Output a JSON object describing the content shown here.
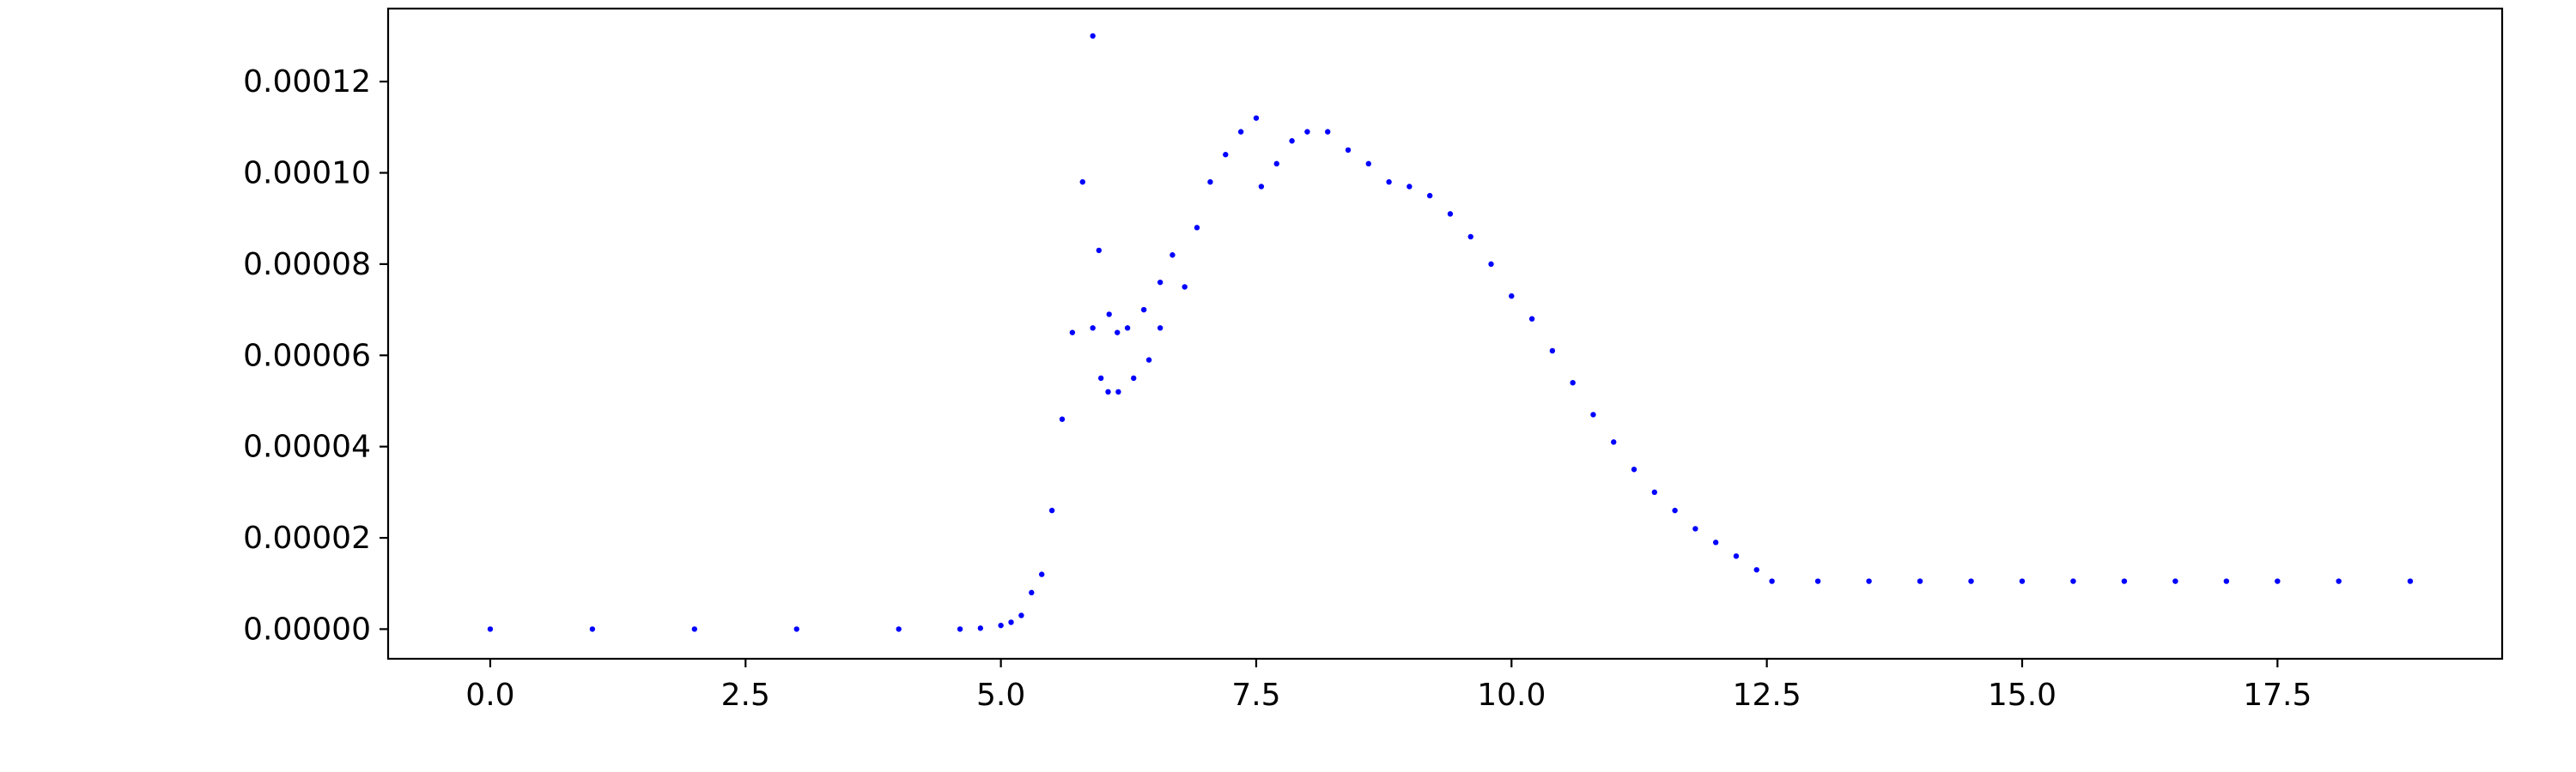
{
  "chart_data": {
    "type": "scatter",
    "title": "",
    "xlabel": "",
    "ylabel": "",
    "xlim": [
      -1.0,
      19.7
    ],
    "ylim": [
      -6.5e-06,
      0.000136
    ],
    "grid": false,
    "x_ticks": [
      {
        "value": 0.0,
        "label": "0.0"
      },
      {
        "value": 2.5,
        "label": "2.5"
      },
      {
        "value": 5.0,
        "label": "5.0"
      },
      {
        "value": 7.5,
        "label": "7.5"
      },
      {
        "value": 10.0,
        "label": "10.0"
      },
      {
        "value": 12.5,
        "label": "12.5"
      },
      {
        "value": 15.0,
        "label": "15.0"
      },
      {
        "value": 17.5,
        "label": "17.5"
      }
    ],
    "y_ticks": [
      {
        "value": 0.0,
        "label": "0.00000"
      },
      {
        "value": 2e-05,
        "label": "0.00002"
      },
      {
        "value": 4e-05,
        "label": "0.00004"
      },
      {
        "value": 6e-05,
        "label": "0.00006"
      },
      {
        "value": 8e-05,
        "label": "0.00008"
      },
      {
        "value": 0.0001,
        "label": "0.00010"
      },
      {
        "value": 0.00012,
        "label": "0.00012"
      }
    ],
    "marker_color": "#0000ff",
    "series": [
      {
        "points": [
          [
            0.0,
            0.0
          ],
          [
            1.0,
            0.0
          ],
          [
            2.0,
            0.0
          ],
          [
            3.0,
            0.0
          ],
          [
            4.0,
            0.0
          ],
          [
            4.6,
            0.0
          ],
          [
            4.8,
            2e-07
          ],
          [
            5.0,
            8e-07
          ],
          [
            5.1,
            1.5e-06
          ],
          [
            5.2,
            3e-06
          ],
          [
            5.3,
            8e-06
          ],
          [
            5.4,
            1.2e-05
          ],
          [
            5.5,
            2.6e-05
          ],
          [
            5.6,
            4.6e-05
          ],
          [
            5.7,
            6.5e-05
          ],
          [
            5.8,
            9.8e-05
          ],
          [
            5.9,
            0.00013
          ],
          [
            5.9,
            6.6e-05
          ],
          [
            5.96,
            8.3e-05
          ],
          [
            5.98,
            5.5e-05
          ],
          [
            6.06,
            6.9e-05
          ],
          [
            6.05,
            5.2e-05
          ],
          [
            6.14,
            6.5e-05
          ],
          [
            6.15,
            5.2e-05
          ],
          [
            6.24,
            6.6e-05
          ],
          [
            6.3,
            5.5e-05
          ],
          [
            6.4,
            7e-05
          ],
          [
            6.45,
            5.9e-05
          ],
          [
            6.56,
            7.6e-05
          ],
          [
            6.56,
            6.6e-05
          ],
          [
            6.68,
            8.2e-05
          ],
          [
            6.8,
            7.5e-05
          ],
          [
            6.92,
            8.8e-05
          ],
          [
            7.05,
            9.8e-05
          ],
          [
            7.2,
            0.000104
          ],
          [
            7.35,
            0.000109
          ],
          [
            7.5,
            0.000112
          ],
          [
            7.55,
            9.7e-05
          ],
          [
            7.7,
            0.000102
          ],
          [
            7.85,
            0.000107
          ],
          [
            8.0,
            0.000109
          ],
          [
            8.2,
            0.000109
          ],
          [
            8.4,
            0.000105
          ],
          [
            8.6,
            0.000102
          ],
          [
            8.8,
            9.8e-05
          ],
          [
            9.0,
            9.7e-05
          ],
          [
            9.2,
            9.5e-05
          ],
          [
            9.4,
            9.1e-05
          ],
          [
            9.6,
            8.6e-05
          ],
          [
            9.8,
            8e-05
          ],
          [
            10.0,
            7.3e-05
          ],
          [
            10.2,
            6.8e-05
          ],
          [
            10.4,
            6.1e-05
          ],
          [
            10.6,
            5.4e-05
          ],
          [
            10.8,
            4.7e-05
          ],
          [
            11.0,
            4.1e-05
          ],
          [
            11.2,
            3.5e-05
          ],
          [
            11.4,
            3e-05
          ],
          [
            11.6,
            2.6e-05
          ],
          [
            11.8,
            2.2e-05
          ],
          [
            12.0,
            1.9e-05
          ],
          [
            12.2,
            1.6e-05
          ],
          [
            12.4,
            1.3e-05
          ],
          [
            12.55,
            1.05e-05
          ],
          [
            13.0,
            1.05e-05
          ],
          [
            13.5,
            1.05e-05
          ],
          [
            14.0,
            1.05e-05
          ],
          [
            14.5,
            1.05e-05
          ],
          [
            15.0,
            1.05e-05
          ],
          [
            15.5,
            1.05e-05
          ],
          [
            16.0,
            1.05e-05
          ],
          [
            16.5,
            1.05e-05
          ],
          [
            17.0,
            1.05e-05
          ],
          [
            17.5,
            1.05e-05
          ],
          [
            18.1,
            1.05e-05
          ],
          [
            18.8,
            1.05e-05
          ]
        ]
      }
    ]
  }
}
